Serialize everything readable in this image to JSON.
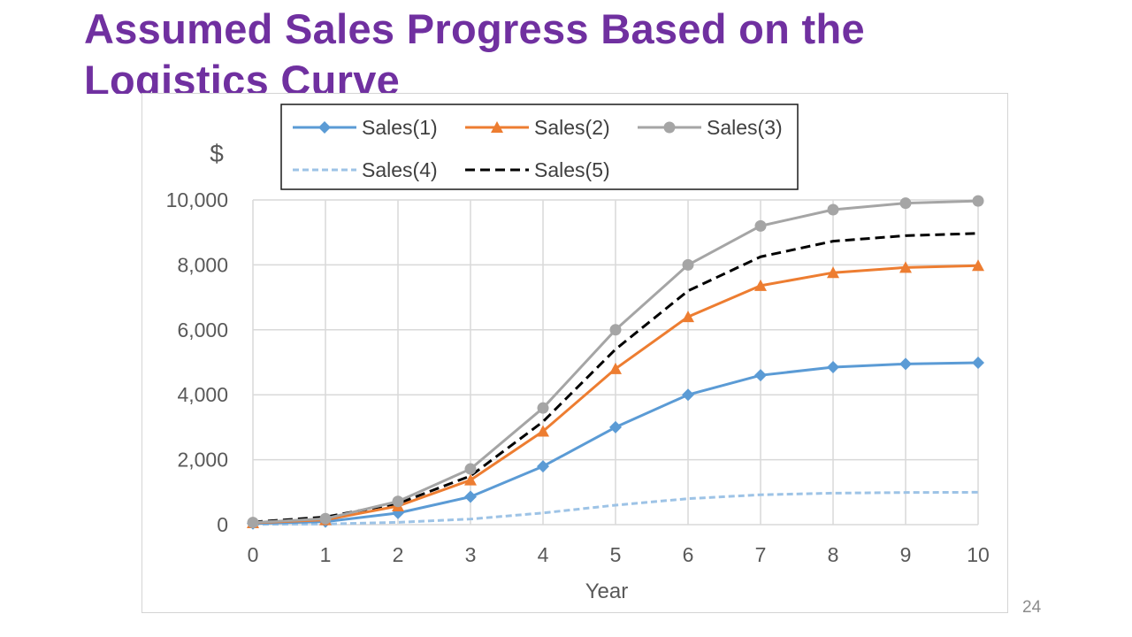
{
  "slide": {
    "title": "Assumed Sales Progress Based on the Logistics Curve",
    "page_number": "24"
  },
  "colors": {
    "title": "#7030a0",
    "sales1": "#5b9bd5",
    "sales2": "#ed7d31",
    "sales3": "#a5a5a5",
    "sales4": "#9dc3e6",
    "sales5": "#000000"
  },
  "chart_data": {
    "type": "line",
    "title": "",
    "xlabel": "Year",
    "ylabel": "$",
    "xlim": [
      0,
      10
    ],
    "ylim": [
      0,
      10000
    ],
    "x_ticks": [
      "0",
      "1",
      "2",
      "3",
      "4",
      "5",
      "6",
      "7",
      "8",
      "9",
      "10"
    ],
    "y_ticks": [
      "0",
      "2,000",
      "4,000",
      "6,000",
      "8,000",
      "10,000"
    ],
    "grid": true,
    "legend_position": "top",
    "x": [
      0,
      1,
      2,
      3,
      4,
      5,
      6,
      7,
      8,
      9,
      10
    ],
    "series": [
      {
        "name": "Sales(1)",
        "marker": "diamond",
        "dash": "solid",
        "color": "#5b9bd5",
        "values": [
          33,
          92,
          357,
          858,
          1796,
          3000,
          4000,
          4600,
          4850,
          4950,
          4985
        ]
      },
      {
        "name": "Sales(2)",
        "marker": "triangle",
        "dash": "solid",
        "color": "#ed7d31",
        "values": [
          53,
          148,
          572,
          1372,
          2874,
          4800,
          6400,
          7360,
          7760,
          7920,
          7976
        ]
      },
      {
        "name": "Sales(3)",
        "marker": "circle",
        "dash": "solid",
        "color": "#a5a5a5",
        "values": [
          66,
          185,
          715,
          1715,
          3592,
          6000,
          8000,
          9200,
          9700,
          9900,
          9970
        ]
      },
      {
        "name": "Sales(4)",
        "marker": "none",
        "dash": "short-dash",
        "color": "#9dc3e6",
        "values": [
          7,
          18,
          72,
          172,
          360,
          600,
          800,
          920,
          970,
          990,
          997
        ]
      },
      {
        "name": "Sales(5)",
        "marker": "none",
        "dash": "long-dash",
        "color": "#000000",
        "values": [
          80,
          235,
          650,
          1500,
          3170,
          5400,
          7200,
          8250,
          8730,
          8900,
          8970
        ]
      }
    ]
  }
}
